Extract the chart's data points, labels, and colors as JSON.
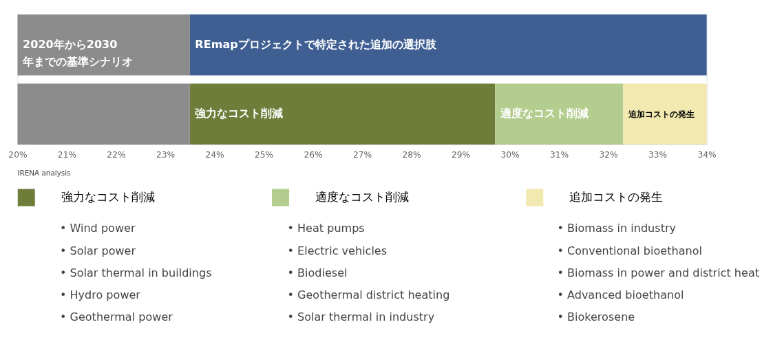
{
  "chart_data": {
    "type": "bar",
    "orientation": "horizontal",
    "stacked": true,
    "categories": [
      null,
      null
    ],
    "series": [
      {
        "name": "2020年から2030年までの基準シナリオ",
        "color": "#8c8c8c",
        "values": [
          3.5,
          3.5
        ],
        "base": [
          20,
          20
        ]
      },
      {
        "name": "REmapプロジェクトで特定された追加の選択肢",
        "color": "#3f5f93",
        "values": [
          10.5,
          null
        ],
        "base": [
          23.5,
          null
        ]
      },
      {
        "name": "強力なコスト削減",
        "color": "#6e7d3a",
        "values": [
          null,
          6.2
        ],
        "base": [
          null,
          23.5
        ]
      },
      {
        "name": "適度なコスト削減",
        "color": "#b3cd8f",
        "values": [
          null,
          2.6
        ],
        "base": [
          null,
          29.7
        ]
      },
      {
        "name": "追加コストの発生",
        "color": "#f1e9b0",
        "values": [
          null,
          1.7
        ],
        "base": [
          null,
          32.3
        ]
      }
    ],
    "legend": "bottom left",
    "xlim": [
      20,
      34
    ],
    "xticks": [
      {
        "value": 20,
        "label": "20%"
      },
      {
        "value": 21,
        "label": "21%"
      },
      {
        "value": 22,
        "label": "22%"
      },
      {
        "value": 23,
        "label": "23%"
      },
      {
        "value": 24,
        "label": "24%"
      },
      {
        "value": 25,
        "label": "25%"
      },
      {
        "value": 26,
        "label": "26%"
      },
      {
        "value": 27,
        "label": "27%"
      },
      {
        "value": 28,
        "label": "28%"
      },
      {
        "value": 29,
        "label": "29%"
      },
      {
        "value": 30,
        "label": "30%"
      },
      {
        "value": 31,
        "label": "31%"
      },
      {
        "value": 32,
        "label": "32%"
      },
      {
        "value": 33,
        "label": "33%"
      },
      {
        "value": 34,
        "label": "34%"
      }
    ],
    "annotations": [
      "IRENA analysis",
      "• Wind power",
      "• Solar power",
      "• Solar thermal in buildings",
      "• Hydro power",
      "• Geothermal power",
      "• Heat pumps",
      "• Electric vehicles",
      "• Biodiesel",
      "• Geothermal district heating",
      "• Solar thermal in industry",
      "• Biomass in industry",
      "• Conventional bioethanol",
      "• Biomass in power and district heat",
      "• Advanced bioethanol",
      "• Biokerosene"
    ]
  }
}
